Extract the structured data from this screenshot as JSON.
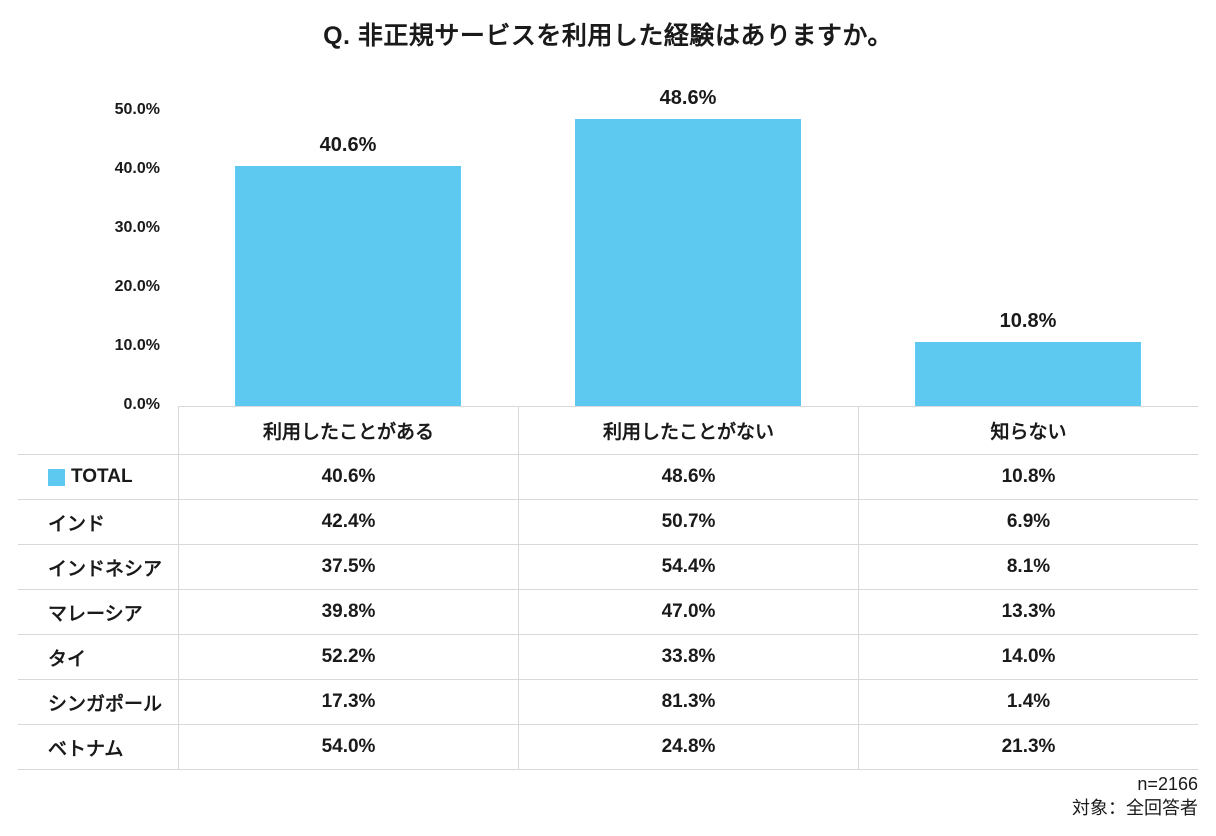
{
  "title": "Q. 非正規サービスを利用した経験はありますか。",
  "chart_data": {
    "type": "bar",
    "title": "Q. 非正規サービスを利用した経験はありますか。",
    "categories": [
      "利用したことがある",
      "利用したことがない",
      "知らない"
    ],
    "values": [
      40.6,
      48.6,
      10.8
    ],
    "value_labels": [
      "40.6%",
      "48.6%",
      "10.8%"
    ],
    "series_name": "TOTAL",
    "ylim": [
      0,
      50
    ],
    "ytick_values": [
      0,
      10,
      20,
      30,
      40,
      50
    ],
    "ytick_labels": [
      "0.0%",
      "10.0%",
      "20.0%",
      "30.0%",
      "40.0%",
      "50.0%"
    ],
    "grid": false,
    "bar_color": "#5EC9F0",
    "legend_position": "table-first-row"
  },
  "table": {
    "columns": [
      "利用したことがある",
      "利用したことがない",
      "知らない"
    ],
    "rows": [
      {
        "label": "TOTAL",
        "legend": true,
        "values": [
          "40.6%",
          "48.6%",
          "10.8%"
        ]
      },
      {
        "label": "インド",
        "legend": false,
        "values": [
          "42.4%",
          "50.7%",
          "6.9%"
        ]
      },
      {
        "label": "インドネシア",
        "legend": false,
        "values": [
          "37.5%",
          "54.4%",
          "8.1%"
        ]
      },
      {
        "label": "マレーシア",
        "legend": false,
        "values": [
          "39.8%",
          "47.0%",
          "13.3%"
        ]
      },
      {
        "label": "タイ",
        "legend": false,
        "values": [
          "52.2%",
          "33.8%",
          "14.0%"
        ]
      },
      {
        "label": "シンガポール",
        "legend": false,
        "values": [
          "17.3%",
          "81.3%",
          "1.4%"
        ]
      },
      {
        "label": "ベトナム",
        "legend": false,
        "values": [
          "54.0%",
          "24.8%",
          "21.3%"
        ]
      }
    ]
  },
  "footer": {
    "sample_size": "n=2166",
    "target": "対象：全回答者"
  }
}
